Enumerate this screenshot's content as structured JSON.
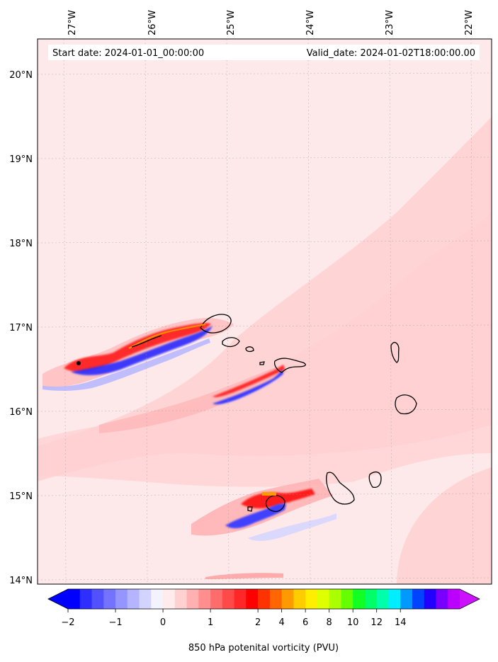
{
  "map": {
    "start_label": "Start date: 2024-01-01_00:00:00",
    "valid_label": "Valid_date: 2024-01-02T18:00:00.00",
    "lon_labels": [
      "27°W",
      "26°W",
      "25°W",
      "24°W",
      "23°W",
      "22°W"
    ],
    "lat_labels": [
      "20°N",
      "19°N",
      "18°N",
      "17°N",
      "16°N",
      "15°N",
      "14°N"
    ],
    "background_color": "#fde9ea"
  },
  "colorbar": {
    "ticks": [
      "−2",
      "−1",
      "0",
      "1",
      "2",
      "4",
      "6",
      "8",
      "10",
      "12",
      "14"
    ],
    "label": "850 hPa potenital vorticity (PVU)",
    "colors": [
      "#0000ff",
      "#2e2eff",
      "#5151ff",
      "#7373ff",
      "#9595ff",
      "#b4b4ff",
      "#d3d3ff",
      "#f3f3ff",
      "#ffebeb",
      "#ffd0d0",
      "#ffb1b1",
      "#ff8f8f",
      "#ff6c6c",
      "#ff4a4a",
      "#ff2727",
      "#ff0000",
      "#ff3300",
      "#ff6600",
      "#ff9900",
      "#ffcc00",
      "#ffee00",
      "#ddff00",
      "#aaff00",
      "#66ff00",
      "#11ff22",
      "#00ff66",
      "#00ffaa",
      "#00eeff",
      "#0099ff",
      "#0044ff",
      "#2200ff",
      "#7700ff",
      "#bb00ff"
    ],
    "under_color": "#0000ff",
    "over_color": "#cc11ff"
  }
}
